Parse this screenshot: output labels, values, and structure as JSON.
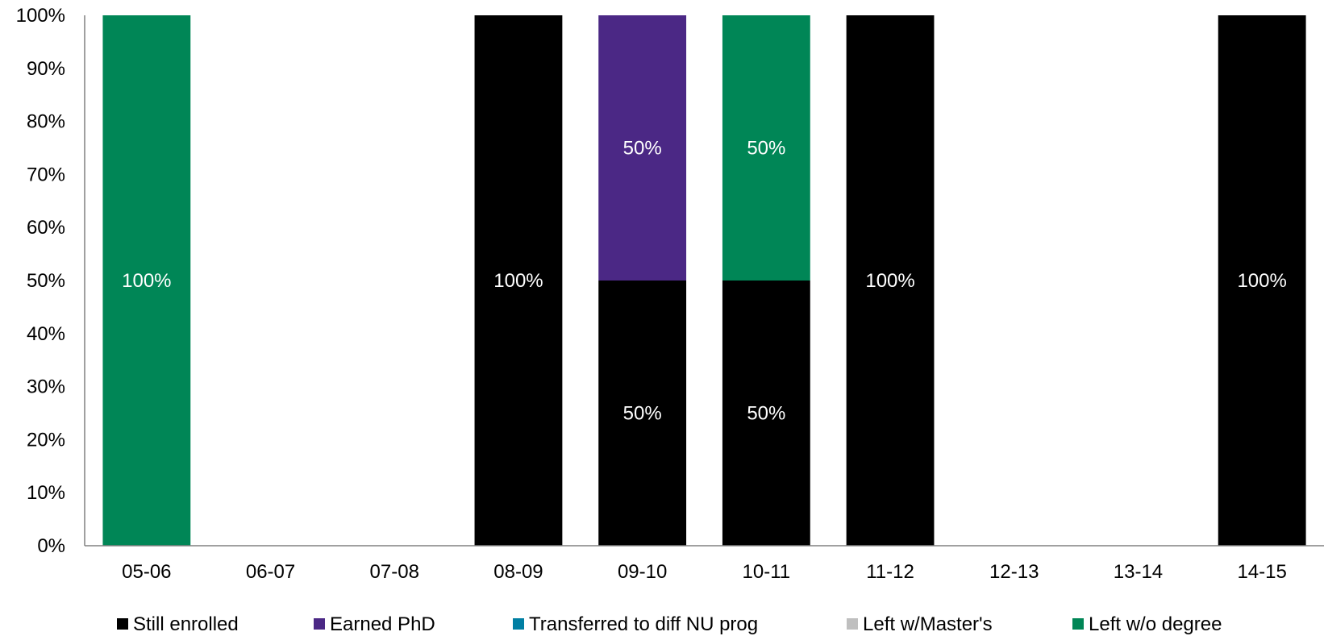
{
  "chart_data": {
    "type": "bar",
    "stacked": true,
    "normalized_percent": true,
    "categories": [
      "05-06",
      "06-07",
      "07-08",
      "08-09",
      "09-10",
      "10-11",
      "11-12",
      "12-13",
      "13-14",
      "14-15"
    ],
    "series": [
      {
        "name": "Still enrolled",
        "color": "#000000",
        "values": [
          0,
          0,
          0,
          100,
          50,
          50,
          100,
          0,
          0,
          100
        ]
      },
      {
        "name": "Earned PhD",
        "color": "#4B2885",
        "values": [
          0,
          0,
          0,
          0,
          50,
          0,
          0,
          0,
          0,
          0
        ]
      },
      {
        "name": "Transferred to diff NU prog",
        "color": "#007FA3",
        "values": [
          0,
          0,
          0,
          0,
          0,
          0,
          0,
          0,
          0,
          0
        ]
      },
      {
        "name": "Left w/Master's",
        "color": "#BFBFBF",
        "values": [
          0,
          0,
          0,
          0,
          0,
          0,
          0,
          0,
          0,
          0
        ]
      },
      {
        "name": "Left w/o degree",
        "color": "#008656",
        "values": [
          100,
          0,
          0,
          0,
          0,
          50,
          0,
          0,
          0,
          0
        ]
      }
    ],
    "y_ticks": [
      "0%",
      "10%",
      "20%",
      "30%",
      "40%",
      "50%",
      "60%",
      "70%",
      "80%",
      "90%",
      "100%"
    ],
    "ylim": [
      0,
      100
    ],
    "value_suffix": "%",
    "data_labels": true,
    "title": "",
    "xlabel": "",
    "ylabel": "",
    "grid": false,
    "legend_position": "bottom"
  }
}
